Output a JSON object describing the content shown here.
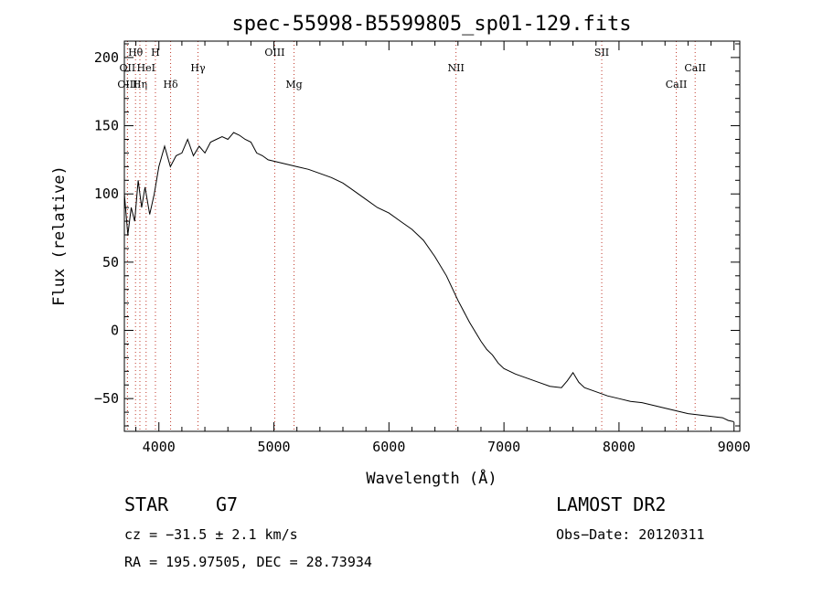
{
  "chart_data": {
    "type": "line",
    "title": "spec-55998-B5599805_sp01-129.fits",
    "xlabel": "Wavelength (Å)",
    "ylabel": "Flux (relative)",
    "xlim": [
      3700,
      9050
    ],
    "ylim": [
      -74,
      212
    ],
    "xticks": [
      4000,
      5000,
      6000,
      7000,
      8000,
      9000
    ],
    "yticks": [
      -50,
      0,
      50,
      100,
      150,
      200
    ],
    "grid": false,
    "line_markers": [
      {
        "label": "OII",
        "x": 3727,
        "row": 2
      },
      {
        "label": "Hθ",
        "x": 3797,
        "row": 1
      },
      {
        "label": "OIII",
        "x": 3727,
        "row": 3
      },
      {
        "label": "Hη",
        "x": 3835,
        "row": 3
      },
      {
        "label": "HeI",
        "x": 3889,
        "row": 2
      },
      {
        "label": "H",
        "x": 3970,
        "row": 1
      },
      {
        "label": "Hδ",
        "x": 4102,
        "row": 3
      },
      {
        "label": "Hγ",
        "x": 4340,
        "row": 2
      },
      {
        "label": "OIII",
        "x": 5007,
        "row": 1
      },
      {
        "label": "Mg",
        "x": 5175,
        "row": 3
      },
      {
        "label": "NII",
        "x": 6583,
        "row": 2
      },
      {
        "label": "SII",
        "x": 7850,
        "row": 1
      },
      {
        "label": "CaII",
        "x": 8498,
        "row": 3
      },
      {
        "label": "CaII",
        "x": 8662,
        "row": 2
      }
    ],
    "series": [
      {
        "x": [
          3700,
          3730,
          3760,
          3790,
          3820,
          3850,
          3880,
          3920,
          3960,
          4000,
          4050,
          4100,
          4150,
          4200,
          4250,
          4300,
          4350,
          4400,
          4450,
          4500,
          4550,
          4600,
          4650,
          4700,
          4750,
          4800,
          4850,
          4900,
          4950,
          5000,
          5050,
          5100,
          5150,
          5200,
          5300,
          5400,
          5500,
          5600,
          5700,
          5800,
          5900,
          6000,
          6100,
          6200,
          6300,
          6400,
          6500,
          6600,
          6700,
          6800,
          6850,
          6900,
          6950,
          7000,
          7100,
          7200,
          7300,
          7400,
          7500,
          7550,
          7600,
          7650,
          7700,
          7800,
          7900,
          8000,
          8100,
          8200,
          8300,
          8400,
          8500,
          8600,
          8700,
          8800,
          8900,
          8950,
          9000
        ],
        "values": [
          100,
          70,
          90,
          80,
          110,
          90,
          105,
          85,
          100,
          120,
          135,
          120,
          128,
          130,
          140,
          128,
          135,
          130,
          138,
          140,
          142,
          140,
          145,
          143,
          140,
          138,
          130,
          128,
          125,
          124,
          123,
          122,
          121,
          120,
          118,
          115,
          112,
          108,
          102,
          96,
          90,
          86,
          80,
          74,
          66,
          54,
          40,
          22,
          6,
          -8,
          -14,
          -18,
          -24,
          -28,
          -32,
          -35,
          -38,
          -41,
          -42,
          -37,
          -31,
          -38,
          -42,
          -45,
          -48,
          -50,
          -52,
          -53,
          -55,
          -57,
          -59,
          -61,
          -62,
          -63,
          -64,
          -66,
          -67
        ]
      }
    ]
  },
  "footer": {
    "object_type": "STAR",
    "subclass": "G7",
    "survey": "LAMOST DR2",
    "cz": "cz = −31.5 ± 2.1 km/s",
    "obs_date": "Obs−Date: 20120311",
    "coords": "RA = 195.97505, DEC =  28.73934"
  }
}
